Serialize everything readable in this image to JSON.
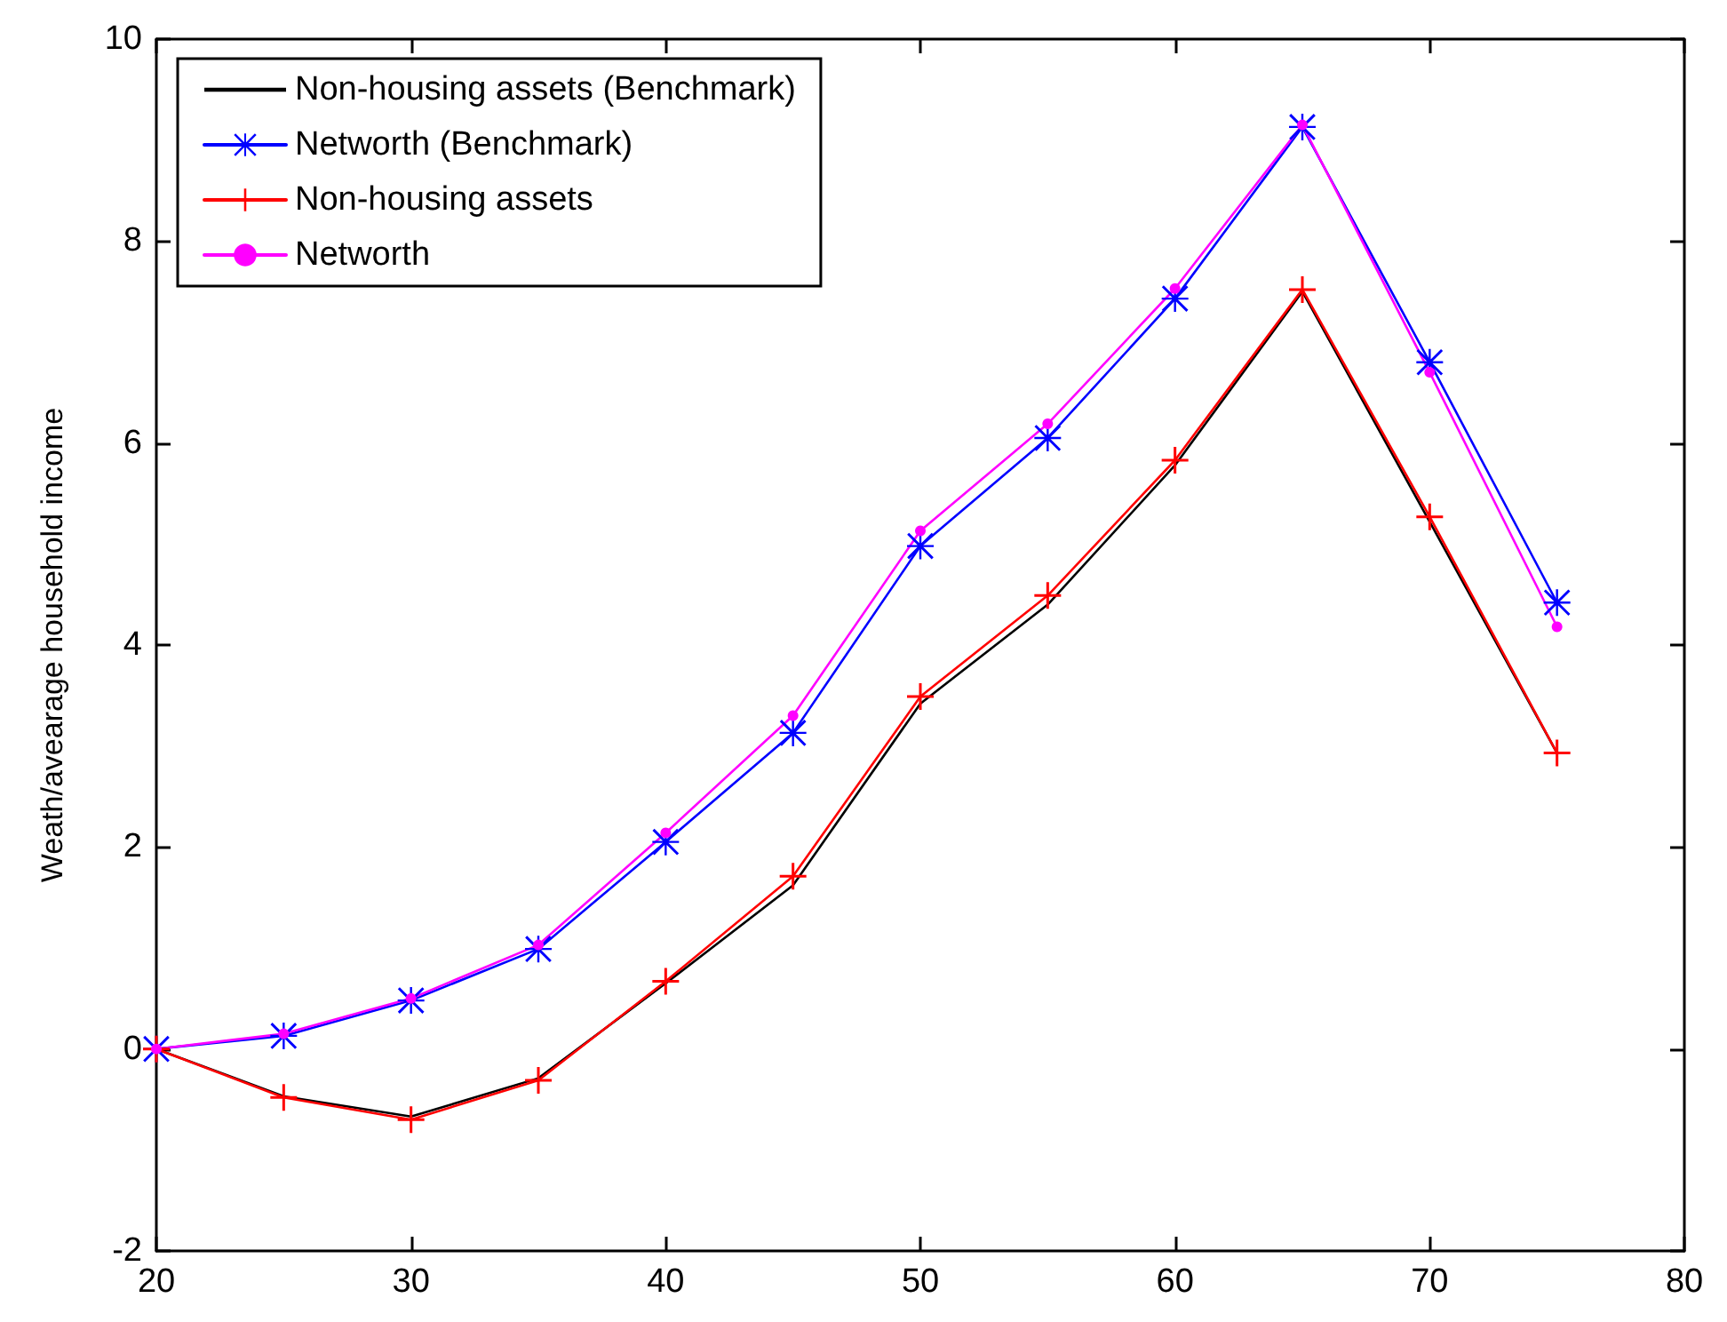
{
  "chart_data": {
    "type": "line",
    "ylabel": "Weath/avearage household income",
    "x": [
      20,
      25,
      30,
      35,
      40,
      45,
      50,
      55,
      60,
      65,
      70,
      75
    ],
    "series": [
      {
        "name": "Non-housing assets (Benchmark)",
        "color": "#000000",
        "marker": "none",
        "values": [
          0,
          -0.47,
          -0.67,
          -0.29,
          0.65,
          1.62,
          3.42,
          4.4,
          5.78,
          7.5,
          5.22,
          2.93
        ]
      },
      {
        "name": "Networth (Benchmark)",
        "color": "#0000ff",
        "marker": "star",
        "values": [
          0,
          0.13,
          0.48,
          0.99,
          2.05,
          3.13,
          4.98,
          6.05,
          7.43,
          9.13,
          6.8,
          4.42
        ]
      },
      {
        "name": "Non-housing assets",
        "color": "#ff0000",
        "marker": "cross",
        "values": [
          0,
          -0.48,
          -0.7,
          -0.31,
          0.67,
          1.71,
          3.49,
          4.49,
          5.83,
          7.52,
          5.27,
          2.93
        ]
      },
      {
        "name": "Networth",
        "color": "#ff00ff",
        "marker": "circle",
        "values": [
          0,
          0.15,
          0.5,
          1.03,
          2.14,
          3.3,
          5.13,
          6.19,
          7.53,
          9.15,
          6.7,
          4.18
        ]
      }
    ],
    "xlim": [
      20,
      80
    ],
    "xticks": [
      20,
      30,
      40,
      50,
      60,
      70,
      80
    ],
    "ylim": [
      -2,
      10
    ],
    "yticks": [
      -2,
      0,
      2,
      4,
      6,
      8,
      10
    ],
    "legend": "top left",
    "grid": false,
    "line_style": "solid"
  }
}
